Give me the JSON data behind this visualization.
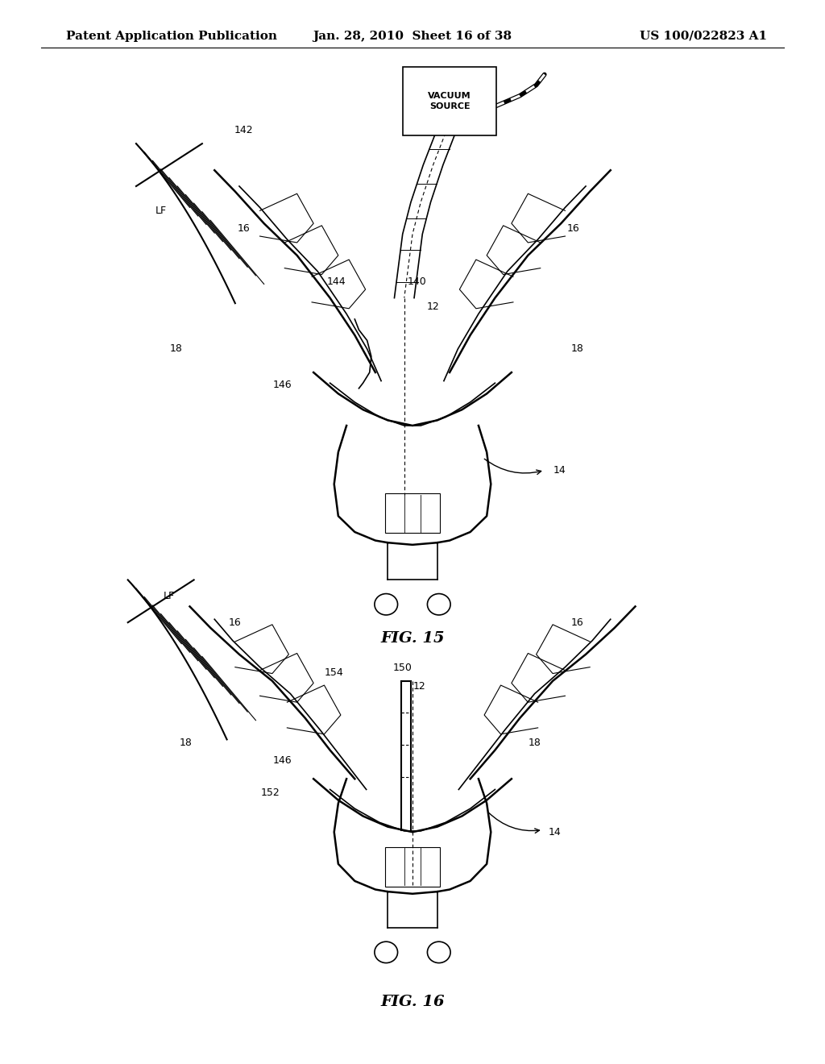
{
  "header_left": "Patent Application Publication",
  "header_mid": "Jan. 28, 2010  Sheet 16 of 38",
  "header_right": "US 100/022823 A1",
  "fig15_label": "FIG. 15",
  "fig16_label": "FIG. 16",
  "bg_color": "#ffffff",
  "line_color": "#000000",
  "header_fontsize": 11,
  "fig_label_fontsize": 14,
  "annotation_fontsize": 10,
  "vacuum_box_text": "VACUUM\nSOURCE"
}
